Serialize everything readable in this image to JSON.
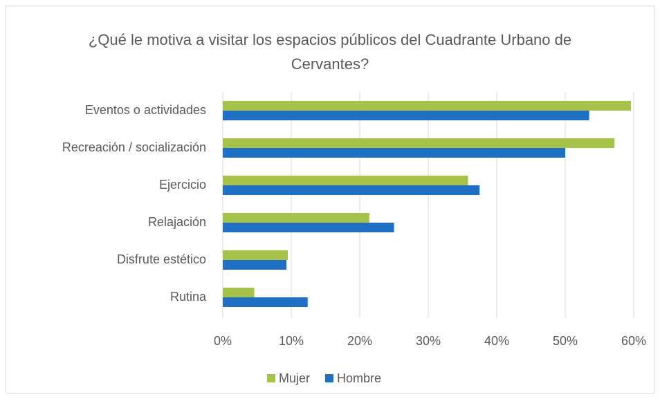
{
  "chart_data": {
    "type": "hbar",
    "title": "¿Qué le motiva a visitar los espacios públicos del Cuadrante Urbano de Cervantes?",
    "categories": [
      "Eventos o actividades",
      "Recreación / socialización",
      "Ejercicio",
      "Relajación",
      "Disfrute estético",
      "Rutina"
    ],
    "series": [
      {
        "name": "Mujer",
        "color": "#a5c249",
        "values": [
          59.6,
          57.2,
          35.8,
          21.4,
          9.5,
          4.6
        ]
      },
      {
        "name": "Hombre",
        "color": "#1f70c4",
        "values": [
          53.5,
          50,
          37.5,
          25,
          9.3,
          12.4
        ]
      }
    ],
    "xlim": [
      0,
      60
    ],
    "xticks": [
      {
        "value": 0,
        "label": "0%"
      },
      {
        "value": 10,
        "label": "10%"
      },
      {
        "value": 20,
        "label": "20%"
      },
      {
        "value": 30,
        "label": "30%"
      },
      {
        "value": 40,
        "label": "40%"
      },
      {
        "value": 50,
        "label": "50%"
      },
      {
        "value": 60,
        "label": "60%"
      }
    ],
    "grid": true,
    "legend": "bottom"
  }
}
